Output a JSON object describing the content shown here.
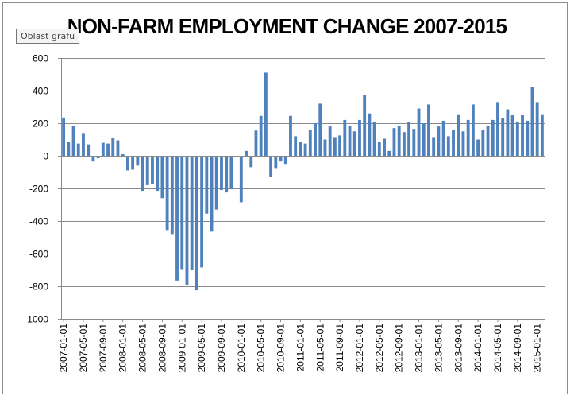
{
  "tooltip": "Oblast grafu",
  "chart_data": {
    "type": "bar",
    "title": "NON-FARM EMPLOYMENT CHANGE 2007-2015",
    "xlabel": "",
    "ylabel": "",
    "ylim": [
      -1000,
      600
    ],
    "yticks": [
      600,
      400,
      200,
      0,
      -200,
      -400,
      -600,
      -800,
      -1000
    ],
    "grid": true,
    "legend": "none",
    "bar_color": "#4f81bd",
    "x_start": "2007-01",
    "xtick_labels": [
      "2007-01-01",
      "2007-05-01",
      "2007-09-01",
      "2008-01-01",
      "2008-05-01",
      "2008-09-01",
      "2009-01-01",
      "2009-05-01",
      "2009-09-01",
      "2010-01-01",
      "2010-05-01",
      "2010-09-01",
      "2011-01-01",
      "2011-05-01",
      "2011-09-01",
      "2012-01-01",
      "2012-05-01",
      "2012-09-01",
      "2013-01-01",
      "2013-05-01",
      "2013-09-01",
      "2014-01-01",
      "2014-05-01",
      "2014-09-01",
      "2015-01-01"
    ],
    "values": [
      235,
      85,
      185,
      75,
      140,
      70,
      -35,
      -15,
      80,
      75,
      110,
      95,
      10,
      -90,
      -85,
      -60,
      -215,
      -180,
      -175,
      -215,
      -260,
      -455,
      -480,
      -765,
      -695,
      -795,
      -700,
      -825,
      -685,
      -355,
      -465,
      -330,
      -210,
      -225,
      -205,
      -10,
      -285,
      30,
      -70,
      155,
      245,
      510,
      -130,
      -75,
      -35,
      -50,
      245,
      120,
      85,
      75,
      160,
      200,
      320,
      100,
      180,
      115,
      125,
      220,
      185,
      150,
      220,
      375,
      260,
      210,
      85,
      105,
      30,
      170,
      185,
      145,
      210,
      165,
      290,
      200,
      315,
      115,
      180,
      215,
      120,
      160,
      255,
      150,
      220,
      315,
      100,
      160,
      185,
      220,
      330,
      230,
      285,
      250,
      210,
      250,
      215,
      420,
      330,
      255
    ]
  }
}
